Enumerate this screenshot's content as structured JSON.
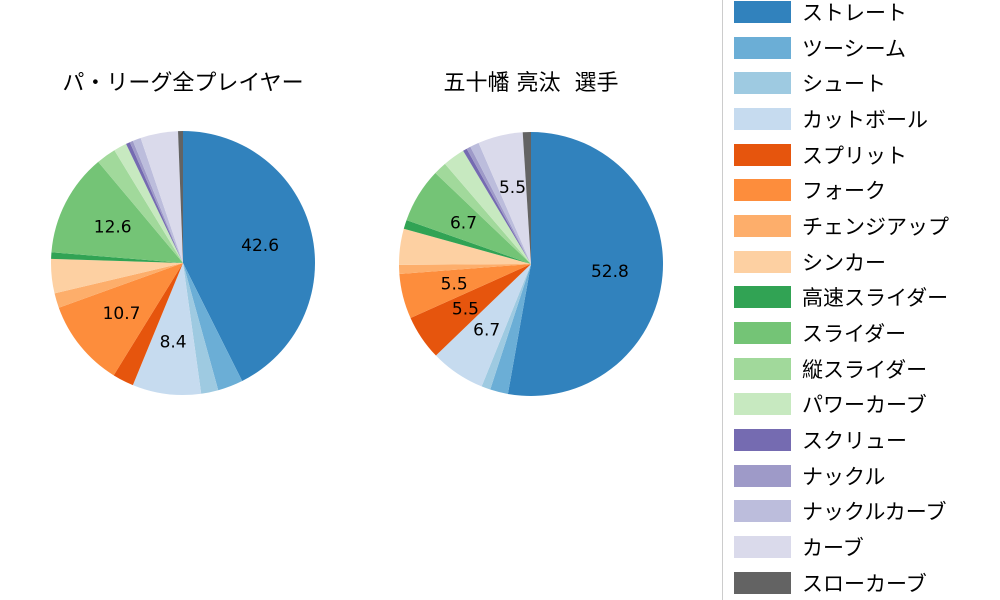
{
  "figure": {
    "background": "#ffffff"
  },
  "chart_data": [
    {
      "type": "pie",
      "title": "パ・リーグ全プレイヤー",
      "start_angle": "top",
      "direction": "clockwise",
      "label_position_radius": 0.6,
      "label_min_value": 5.0,
      "labels": [
        "ストレート",
        "ツーシーム",
        "シュート",
        "カットボール",
        "スプリット",
        "フォーク",
        "チェンジアップ",
        "シンカー",
        "高速スライダー",
        "スライダー",
        "縦スライダー",
        "パワーカーブ",
        "スクリュー",
        "ナックル",
        "ナックルカーブ",
        "カーブ",
        "スローカーブ"
      ],
      "keys": [
        "straight",
        "two-seam",
        "shoot",
        "cut-ball",
        "split",
        "fork",
        "changeup",
        "sinker",
        "fast-slider",
        "slider",
        "vertical-slider",
        "power-curve",
        "screw",
        "knuckle",
        "knuckle-curve",
        "curve",
        "slow-curve"
      ],
      "values": [
        42.6,
        3.1,
        2.1,
        8.4,
        2.6,
        10.7,
        1.8,
        4.2,
        0.8,
        12.6,
        2.4,
        1.6,
        0.5,
        0.4,
        1.0,
        4.6,
        0.6
      ],
      "visible_value_labels": [
        "42.6",
        "8.4",
        "10.7",
        "12.6"
      ],
      "colors": [
        "#3182bd",
        "#6baed6",
        "#9ecae1",
        "#c6dbef",
        "#e6550d",
        "#fd8d3c",
        "#fdae6b",
        "#fdd0a2",
        "#31a354",
        "#74c476",
        "#a1d99b",
        "#c7e9c0",
        "#756bb1",
        "#9e9ac8",
        "#bcbddc",
        "#dadaeb",
        "#636363"
      ]
    },
    {
      "type": "pie",
      "title": "五十幡 亮汰  選手",
      "start_angle": "top",
      "direction": "clockwise",
      "label_position_radius": 0.6,
      "label_min_value": 5.0,
      "labels": [
        "ストレート",
        "ツーシーム",
        "シュート",
        "カットボール",
        "スプリット",
        "フォーク",
        "チェンジアップ",
        "シンカー",
        "高速スライダー",
        "スライダー",
        "縦スライダー",
        "パワーカーブ",
        "スクリュー",
        "ナックル",
        "ナックルカーブ",
        "カーブ",
        "スローカーブ"
      ],
      "keys": [
        "straight",
        "two-seam",
        "shoot",
        "cut-ball",
        "split",
        "fork",
        "changeup",
        "sinker",
        "fast-slider",
        "slider",
        "vertical-slider",
        "power-curve",
        "screw",
        "knuckle",
        "knuckle-curve",
        "curve",
        "slow-curve"
      ],
      "values": [
        52.8,
        2.2,
        1.1,
        6.7,
        5.5,
        5.5,
        1.1,
        4.4,
        1.1,
        6.7,
        1.6,
        2.7,
        0.5,
        0.5,
        1.1,
        5.5,
        1.0
      ],
      "visible_value_labels": [
        "52.8",
        "6.7",
        "5.5",
        "5.5",
        "6.7",
        "5.5"
      ],
      "colors": [
        "#3182bd",
        "#6baed6",
        "#9ecae1",
        "#c6dbef",
        "#e6550d",
        "#fd8d3c",
        "#fdae6b",
        "#fdd0a2",
        "#31a354",
        "#74c476",
        "#a1d99b",
        "#c7e9c0",
        "#756bb1",
        "#9e9ac8",
        "#bcbddc",
        "#dadaeb",
        "#636363"
      ]
    }
  ],
  "legend": {
    "position": "right",
    "items": [
      {
        "label": "ストレート",
        "color": "#3182bd"
      },
      {
        "label": "ツーシーム",
        "color": "#6baed6"
      },
      {
        "label": "シュート",
        "color": "#9ecae1"
      },
      {
        "label": "カットボール",
        "color": "#c6dbef"
      },
      {
        "label": "スプリット",
        "color": "#e6550d"
      },
      {
        "label": "フォーク",
        "color": "#fd8d3c"
      },
      {
        "label": "チェンジアップ",
        "color": "#fdae6b"
      },
      {
        "label": "シンカー",
        "color": "#fdd0a2"
      },
      {
        "label": "高速スライダー",
        "color": "#31a354"
      },
      {
        "label": "スライダー",
        "color": "#74c476"
      },
      {
        "label": "縦スライダー",
        "color": "#a1d99b"
      },
      {
        "label": "パワーカーブ",
        "color": "#c7e9c0"
      },
      {
        "label": "スクリュー",
        "color": "#756bb1"
      },
      {
        "label": "ナックル",
        "color": "#9e9ac8"
      },
      {
        "label": "ナックルカーブ",
        "color": "#bcbddc"
      },
      {
        "label": "カーブ",
        "color": "#dadaeb"
      },
      {
        "label": "スローカーブ",
        "color": "#636363"
      }
    ]
  }
}
